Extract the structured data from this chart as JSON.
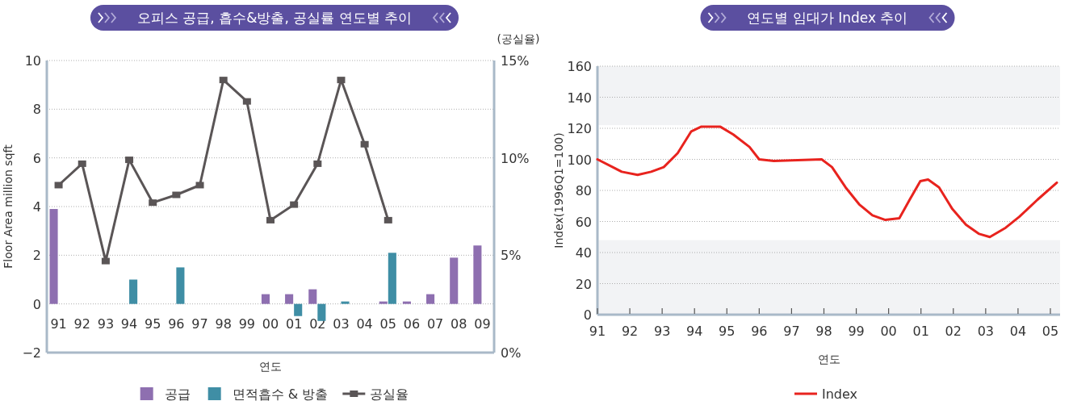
{
  "chart_data": [
    {
      "type": "bar",
      "title": "오피스 공급, 흡수&방출, 공실률 연도별 추이",
      "xlabel": "연도",
      "ylabel": "Floor Area million sqft",
      "y2label": "(공실율)",
      "categories": [
        "91",
        "92",
        "93",
        "94",
        "95",
        "96",
        "97",
        "98",
        "99",
        "00",
        "01",
        "02",
        "03",
        "04",
        "05",
        "06",
        "07",
        "08",
        "09"
      ],
      "series": [
        {
          "name": "공급",
          "color": "#8e6fb0",
          "values": [
            3.9,
            null,
            null,
            null,
            null,
            null,
            null,
            null,
            null,
            0.4,
            0.4,
            0.6,
            null,
            null,
            0.1,
            0.1,
            0.4,
            1.9,
            2.4
          ]
        },
        {
          "name": "면적흡수 & 방출",
          "color": "#3f8ea5",
          "values": [
            null,
            null,
            null,
            1.0,
            null,
            1.5,
            null,
            null,
            null,
            null,
            -0.5,
            -0.7,
            0.1,
            null,
            2.1,
            null,
            null,
            null,
            null
          ]
        },
        {
          "name": "공실율",
          "type": "line",
          "axis": "y2",
          "color": "#5a5556",
          "values": [
            8.6,
            9.7,
            4.7,
            9.9,
            7.7,
            8.1,
            8.6,
            14.0,
            12.9,
            6.8,
            7.6,
            9.7,
            14.0,
            10.7,
            6.8,
            null,
            null,
            null,
            null
          ]
        }
      ],
      "ylim": [
        -2,
        10
      ],
      "yticks": [
        {
          "value": -2,
          "label": "−2"
        },
        0,
        2,
        4,
        6,
        8,
        10
      ],
      "y2lim": [
        0,
        15
      ],
      "y2ticks": [
        {
          "value": 0,
          "label": "0%"
        },
        {
          "value": 5,
          "label": "5%"
        },
        {
          "value": 10,
          "label": "10%"
        },
        {
          "value": 15,
          "label": "15%"
        }
      ],
      "grid": "y",
      "legend": "bottom",
      "marker": "square"
    },
    {
      "type": "line",
      "title": "연도별 임대가 Index 추이",
      "xlabel": "연도",
      "ylabel": "Index(1996Q1=100)",
      "x": [
        1991,
        1991.75,
        1992.24,
        1992.66,
        1993.05,
        1993.48,
        1993.9,
        1994.2,
        1994.8,
        1995.2,
        1995.7,
        1996.0,
        1996.45,
        1997.93,
        1998.25,
        1998.67,
        1999.09,
        1999.5,
        1999.9,
        2000.33,
        2000.65,
        2000.98,
        2001.22,
        2001.56,
        2001.97,
        2002.39,
        2002.8,
        2003.13,
        2003.62,
        2004.04,
        2004.6,
        2005.2
      ],
      "series": [
        {
          "name": "Index",
          "color": "#e8231e",
          "values": [
            100,
            92,
            90,
            92,
            95,
            104,
            118,
            121,
            121,
            116,
            108,
            100,
            99,
            100,
            95,
            82,
            71,
            64,
            61,
            62,
            74,
            86,
            87,
            82,
            68,
            58,
            52,
            50,
            56,
            63,
            74,
            85
          ]
        }
      ],
      "xlim": [
        1991,
        2005.3
      ],
      "xticks": [
        {
          "value": 1991,
          "label": "91"
        },
        {
          "value": 1992,
          "label": "92"
        },
        {
          "value": 1993,
          "label": "93"
        },
        {
          "value": 1994,
          "label": "94"
        },
        {
          "value": 1995,
          "label": "95"
        },
        {
          "value": 1996,
          "label": "96"
        },
        {
          "value": 1997,
          "label": "97"
        },
        {
          "value": 1998,
          "label": "98"
        },
        {
          "value": 1999,
          "label": "99"
        },
        {
          "value": 2000,
          "label": "00"
        },
        {
          "value": 2001,
          "label": "01"
        },
        {
          "value": 2002,
          "label": "02"
        },
        {
          "value": 2003,
          "label": "03"
        },
        {
          "value": 2004,
          "label": "04"
        },
        {
          "value": 2005,
          "label": "05"
        }
      ],
      "ylim": [
        0,
        160
      ],
      "yticks": [
        0,
        20,
        40,
        60,
        80,
        100,
        120,
        140,
        160
      ],
      "bands": [
        {
          "axis": "y",
          "from": 0,
          "to": 48,
          "color": "#f2f3f5"
        },
        {
          "axis": "y",
          "from": 122,
          "to": 160,
          "color": "#f2f3f5"
        }
      ],
      "grid": "y",
      "legend": "bottom",
      "marker": "none"
    }
  ]
}
